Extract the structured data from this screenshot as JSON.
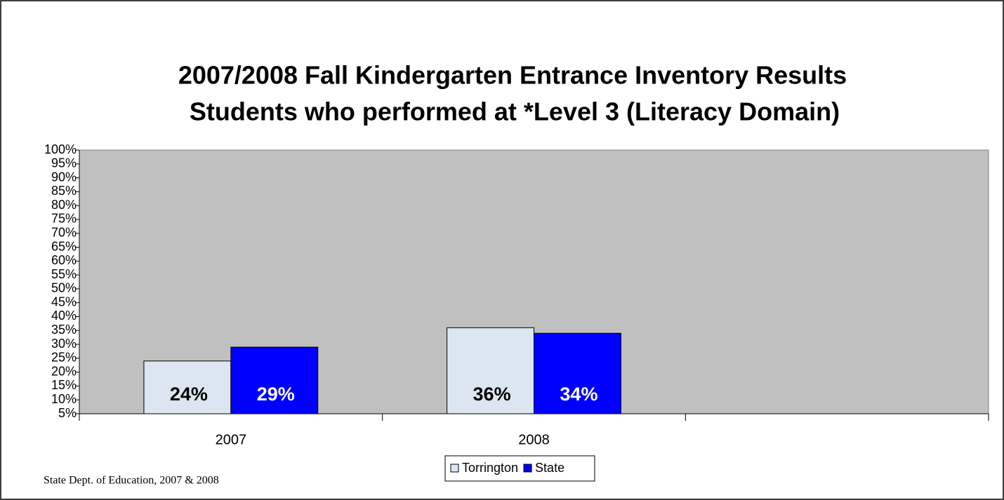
{
  "chart_data": {
    "type": "bar",
    "title": "2007/2008 Fall Kindergarten Entrance Inventory Results",
    "subtitle": "Students who performed at *Level 3  (Literacy Domain)",
    "categories": [
      "2007",
      "2008",
      null
    ],
    "series": [
      {
        "name": "Torrington",
        "color": "#dbe6f1",
        "label_color": "#000000",
        "values": [
          24,
          36,
          null
        ],
        "value_labels": [
          "24%",
          "36%",
          null
        ]
      },
      {
        "name": "State",
        "color": "#0000ff",
        "label_color": "#ffffff",
        "values": [
          29,
          34,
          null
        ],
        "value_labels": [
          "29%",
          "34%",
          null
        ]
      }
    ],
    "ylim": [
      5,
      100
    ],
    "yticks": [
      {
        "value": 5,
        "label": "5%"
      },
      {
        "value": 10,
        "label": "10%"
      },
      {
        "value": 15,
        "label": "15%"
      },
      {
        "value": 20,
        "label": "20%"
      },
      {
        "value": 25,
        "label": "25%"
      },
      {
        "value": 30,
        "label": "30%"
      },
      {
        "value": 35,
        "label": "35%"
      },
      {
        "value": 40,
        "label": "40%"
      },
      {
        "value": 45,
        "label": "45%"
      },
      {
        "value": 50,
        "label": "50%"
      },
      {
        "value": 55,
        "label": "55%"
      },
      {
        "value": 60,
        "label": "60%"
      },
      {
        "value": 65,
        "label": "65%"
      },
      {
        "value": 70,
        "label": "70%"
      },
      {
        "value": 75,
        "label": "75%"
      },
      {
        "value": 80,
        "label": "80%"
      },
      {
        "value": 85,
        "label": "85%"
      },
      {
        "value": 90,
        "label": "90%"
      },
      {
        "value": 95,
        "label": "95%"
      },
      {
        "value": 100,
        "label": "100%"
      }
    ],
    "plot_background": "#c0c0c0",
    "legend": "bottom",
    "source": "State Dept. of Education, 2007 & 2008"
  }
}
